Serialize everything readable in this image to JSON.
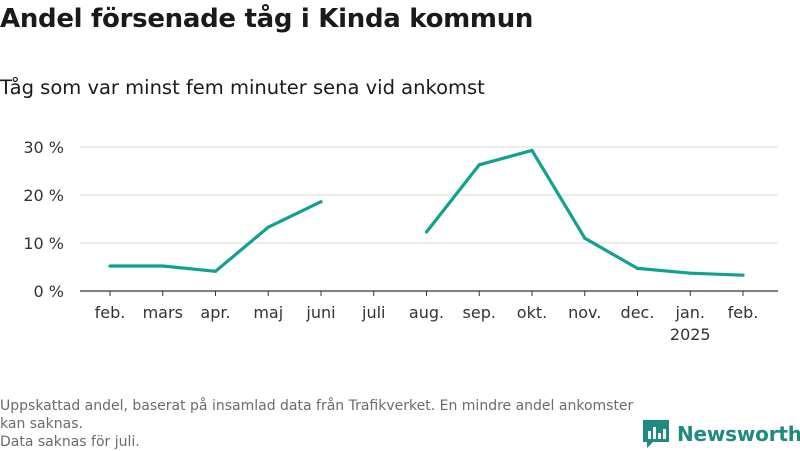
{
  "title": "Andel försenade tåg i Kinda kommun",
  "subtitle": "Tåg som var minst fem minuter sena vid ankomst",
  "footer": {
    "line1": "Uppskattad andel, baserat på insamlad data från Trafikverket. En mindre andel ankomster kan saknas.",
    "line2": "Data saknas för juli."
  },
  "brand": {
    "name": "Newsworthy",
    "icon": "newsworthy-logo-icon",
    "color": "#1f8a80"
  },
  "chart_data": {
    "type": "line",
    "categories": [
      "feb.",
      "mars",
      "apr.",
      "maj",
      "juni",
      "juli",
      "aug.",
      "sep.",
      "okt.",
      "nov.",
      "dec.",
      "jan.",
      "feb."
    ],
    "year_labels": [
      "",
      "",
      "",
      "",
      "",
      "",
      "",
      "",
      "",
      "",
      "",
      "2025",
      ""
    ],
    "series": [
      {
        "color": "#12a092",
        "values": [
          5.2,
          5.2,
          4.1,
          13.3,
          18.6,
          null,
          12.3,
          26.3,
          29.3,
          11.0,
          4.7,
          3.7,
          3.3
        ]
      }
    ],
    "yticks": [
      0,
      10,
      20,
      30
    ],
    "ytick_labels": [
      "0 %",
      "10 %",
      "20 %",
      "30 %"
    ],
    "ylim": [
      0,
      30
    ],
    "grid": true
  }
}
